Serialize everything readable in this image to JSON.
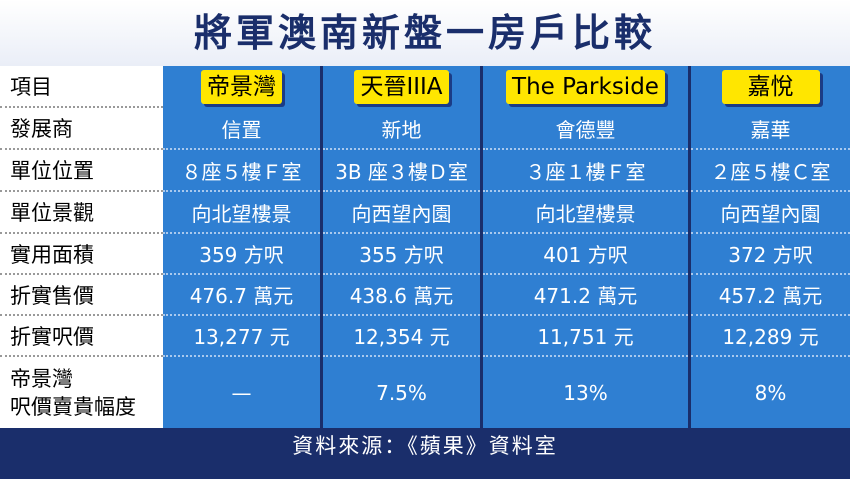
{
  "title": "將軍澳南新盤一房戶比較",
  "row_labels": {
    "item": "項目",
    "developer": "發展商",
    "unit": "單位位置",
    "view": "單位景觀",
    "area": "實用面積",
    "price": "折實售價",
    "psf": "折實呎價",
    "premium_l1": "帝景灣",
    "premium_l2": "呎價賣貴幅度"
  },
  "columns": [
    {
      "name": "帝景灣",
      "developer": "信置",
      "unit": "８座５樓Ｆ室",
      "view": "向北望樓景",
      "area": "359 方呎",
      "price": "476.7 萬元",
      "psf": "13,277 元",
      "premium": "—"
    },
    {
      "name": "天晉IIIA",
      "developer": "新地",
      "unit": "3B 座３樓Ｄ室",
      "view": "向西望內園",
      "area": "355 方呎",
      "price": "438.6 萬元",
      "psf": "12,354 元",
      "premium": "7.5%"
    },
    {
      "name": "The Parkside",
      "developer": "會德豐",
      "unit": "３座１樓Ｆ室",
      "view": "向北望樓景",
      "area": "401 方呎",
      "price": "471.2 萬元",
      "psf": "11,751 元",
      "premium": "13%"
    },
    {
      "name": "嘉悅",
      "developer": "嘉華",
      "unit": "２座５樓Ｃ室",
      "view": "向西望內園",
      "area": "372 方呎",
      "price": "457.2 萬元",
      "psf": "12,289 元",
      "premium": "8%"
    }
  ],
  "footer": "資料來源：《蘋果》資料室"
}
